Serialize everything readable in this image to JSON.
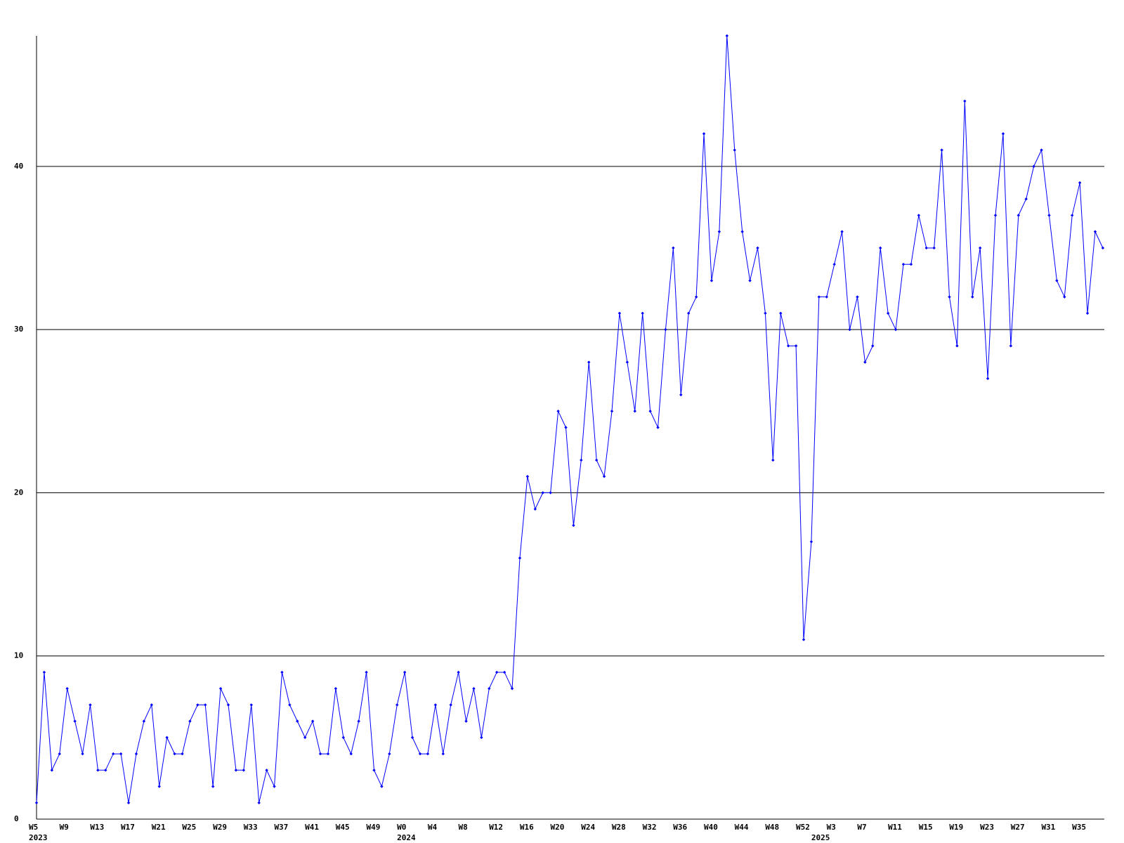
{
  "chart_data": {
    "type": "line",
    "color": "#0000ff",
    "grid": true,
    "ylim": [
      0,
      48
    ],
    "yticks": [
      0,
      10,
      20,
      30,
      40
    ],
    "categories": [
      "W5",
      null,
      null,
      null,
      "W9",
      null,
      null,
      null,
      "W13",
      null,
      null,
      null,
      "W17",
      null,
      null,
      null,
      "W21",
      null,
      null,
      null,
      "W25",
      null,
      null,
      null,
      "W29",
      null,
      null,
      null,
      "W33",
      null,
      null,
      null,
      "W37",
      null,
      null,
      null,
      "W41",
      null,
      null,
      null,
      "W45",
      null,
      null,
      null,
      "W49",
      null,
      null,
      null,
      "W0",
      null,
      null,
      null,
      "W4",
      null,
      null,
      null,
      "W8",
      null,
      null,
      null,
      "W12",
      null,
      null,
      null,
      "W16",
      null,
      null,
      null,
      "W20",
      null,
      null,
      null,
      "W24",
      null,
      null,
      null,
      "W28",
      null,
      null,
      null,
      "W32",
      null,
      null,
      null,
      "W36",
      null,
      null,
      null,
      "W40",
      null,
      null,
      null,
      "W44",
      null,
      null,
      null,
      "W48",
      null,
      null,
      null,
      "W52",
      null,
      null,
      null,
      "W3",
      null,
      null,
      null,
      "W7",
      null,
      null,
      null,
      "W11",
      null,
      null,
      null,
      "W15",
      null,
      null,
      null,
      "W19",
      null,
      null,
      null,
      "W23",
      null,
      null,
      null,
      "W27",
      null,
      null,
      null,
      "W31",
      null,
      null,
      null,
      "W35",
      null,
      null,
      null
    ],
    "years": [
      "2023",
      null,
      null,
      null,
      null,
      null,
      null,
      null,
      null,
      null,
      null,
      null,
      null,
      null,
      null,
      null,
      null,
      null,
      null,
      null,
      null,
      null,
      null,
      null,
      null,
      null,
      null,
      null,
      null,
      null,
      null,
      null,
      null,
      null,
      null,
      null,
      null,
      null,
      null,
      null,
      null,
      null,
      null,
      null,
      null,
      null,
      null,
      null,
      "2024",
      null,
      null,
      null,
      null,
      null,
      null,
      null,
      null,
      null,
      null,
      null,
      null,
      null,
      null,
      null,
      null,
      null,
      null,
      null,
      null,
      null,
      null,
      null,
      null,
      null,
      null,
      null,
      null,
      null,
      null,
      null,
      null,
      null,
      null,
      null,
      null,
      null,
      null,
      null,
      null,
      null,
      null,
      null,
      null,
      null,
      null,
      null,
      null,
      null,
      null,
      null,
      null,
      null,
      "2025",
      null,
      null,
      null,
      null,
      null,
      null,
      null,
      null,
      null,
      null,
      null,
      null,
      null,
      null,
      null,
      null,
      null,
      null,
      null,
      null,
      null,
      null,
      null,
      null,
      null,
      null,
      null,
      null,
      null,
      null,
      null,
      null,
      null,
      null,
      null,
      null,
      null
    ],
    "values": [
      1,
      9,
      3,
      4,
      8,
      6,
      4,
      7,
      3,
      3,
      4,
      4,
      1,
      4,
      6,
      7,
      2,
      5,
      4,
      4,
      6,
      7,
      7,
      2,
      8,
      7,
      3,
      3,
      7,
      1,
      3,
      2,
      9,
      7,
      6,
      5,
      6,
      4,
      4,
      8,
      5,
      4,
      6,
      9,
      3,
      2,
      4,
      7,
      9,
      5,
      4,
      4,
      7,
      4,
      7,
      9,
      6,
      8,
      5,
      8,
      9,
      9,
      8,
      16,
      21,
      19,
      20,
      20,
      25,
      24,
      18,
      22,
      28,
      22,
      21,
      25,
      31,
      28,
      25,
      31,
      25,
      24,
      30,
      35,
      26,
      31,
      32,
      42,
      33,
      36,
      48,
      41,
      36,
      33,
      35,
      31,
      22,
      31,
      29,
      29,
      11,
      17,
      32,
      32,
      34,
      36,
      30,
      32,
      28,
      29,
      35,
      31,
      30,
      34,
      34,
      37,
      35,
      35,
      41,
      32,
      29,
      44,
      32,
      35,
      27,
      37,
      42,
      29,
      37,
      38,
      40,
      41,
      37,
      33,
      32,
      37,
      39,
      31,
      36,
      35
    ]
  }
}
